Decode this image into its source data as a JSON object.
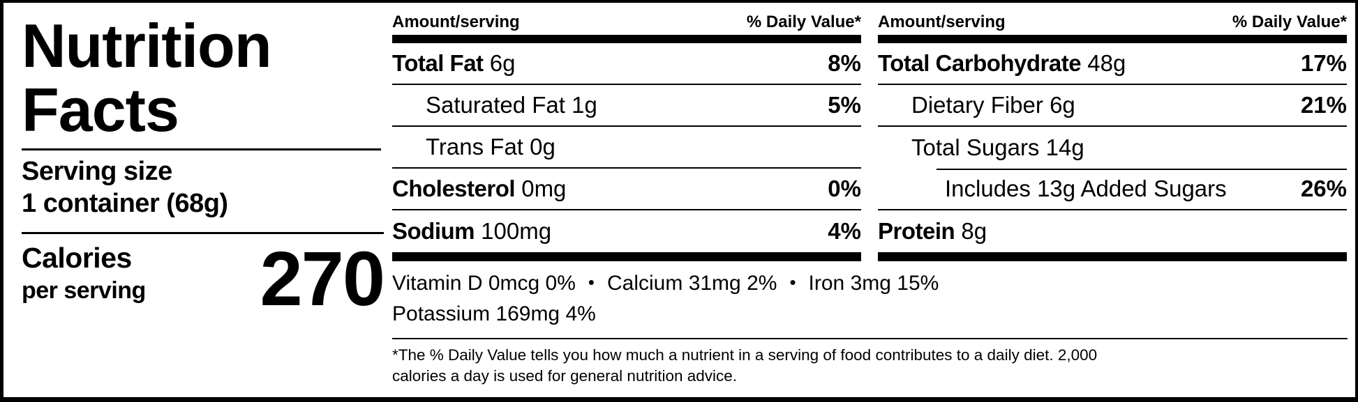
{
  "label": {
    "title_line1": "Nutrition",
    "title_line2": "Facts",
    "serving_size_label": "Serving size",
    "serving_size_value": "1 container (68g)",
    "calories_label": "Calories",
    "calories_sublabel": "per serving",
    "calories_value": "270"
  },
  "columns": [
    {
      "header": {
        "amount": "Amount/serving",
        "daily_value": "% Daily Value*"
      },
      "rows": [
        {
          "name": "Total Fat",
          "amount": "6g",
          "daily_value": "8%"
        },
        {
          "name": "Saturated Fat",
          "amount": "1g",
          "daily_value": "5%"
        },
        {
          "name": "Trans Fat",
          "amount": "0g",
          "daily_value": ""
        },
        {
          "name": "Cholesterol",
          "amount": "0mg",
          "daily_value": "0%"
        },
        {
          "name": "Sodium",
          "amount": "100mg",
          "daily_value": "4%"
        }
      ]
    },
    {
      "header": {
        "amount": "Amount/serving",
        "daily_value": "% Daily Value*"
      },
      "rows": [
        {
          "name": "Total Carbohydrate",
          "amount": "48g",
          "daily_value": "17%"
        },
        {
          "name": "Dietary Fiber",
          "amount": "6g",
          "daily_value": "21%"
        },
        {
          "name": "Total Sugars",
          "amount": "14g",
          "daily_value": ""
        },
        {
          "name": "Includes 13g Added Sugars",
          "amount": "",
          "daily_value": "26%"
        },
        {
          "name": "Protein",
          "amount": "8g",
          "daily_value": ""
        }
      ]
    }
  ],
  "micronutrients": {
    "separator": "•",
    "line1": [
      "Vitamin D 0mcg 0%",
      "Calcium 31mg 2%",
      "Iron 3mg 15%"
    ],
    "line2": "Potassium 169mg 4%"
  },
  "footnote": {
    "line1": "*The % Daily Value tells you how much a nutrient in a serving of food contributes to a daily diet. 2,000",
    "line2": "calories a day is used for general nutrition advice."
  },
  "colors": {
    "ink": "#000000",
    "background": "#ffffff"
  }
}
